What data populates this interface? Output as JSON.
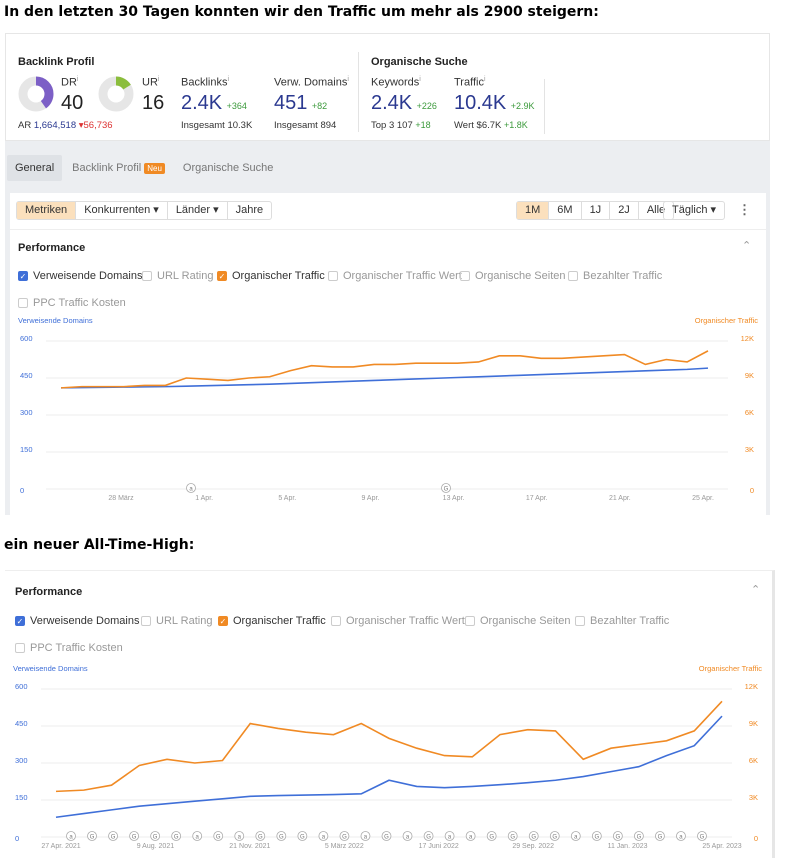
{
  "heading1": "In den letzten 30 Tagen konnten wir den Traffic um mehr als 2900 steigern:",
  "heading2": "ein neuer All-Time-High:",
  "colors": {
    "domains": "#3f6fd8",
    "traffic": "#f08a24",
    "dr": "#7c5fc6",
    "ur": "#8bbd3c"
  },
  "summary": {
    "backlink_title": "Backlink Profil",
    "organic_title": "Organische Suche",
    "dr": {
      "label": "DR",
      "value": "40",
      "percent": 40
    },
    "ur": {
      "label": "UR",
      "value": "16",
      "percent": 16
    },
    "ar_label": "AR",
    "ar_value": "1,664,518",
    "ar_change": "▾56,736",
    "backlinks": {
      "label": "Backlinks",
      "value": "2.4K",
      "change": "+364",
      "sub_label": "Insgesamt",
      "sub_value": "10.3K"
    },
    "domains": {
      "label": "Verw. Domains",
      "value": "451",
      "change": "+82",
      "sub_label": "Insgesamt",
      "sub_value": "894"
    },
    "keywords": {
      "label": "Keywords",
      "value": "2.4K",
      "change": "+226",
      "sub_label": "Top 3",
      "sub_value": "107",
      "sub_change": "+18"
    },
    "traffic": {
      "label": "Traffic",
      "value": "10.4K",
      "change": "+2.9K",
      "sub_label": "Wert",
      "sub_value": "$6.7K",
      "sub_change": "+1.8K"
    }
  },
  "tabs": [
    {
      "label": "General",
      "active": true
    },
    {
      "label": "Backlink Profil",
      "badge": "Neu"
    },
    {
      "label": "Organische Suche"
    }
  ],
  "toolbar": {
    "left": [
      "Metriken",
      "Konkurrenten ▾",
      "Länder ▾",
      "Jahre"
    ],
    "ranges": [
      "1M",
      "6M",
      "1J",
      "2J",
      "Alle"
    ],
    "active_range": "1M",
    "interval": "Täglich ▾"
  },
  "performance": {
    "title": "Performance",
    "checkboxes": [
      {
        "label": "Verweisende Domains",
        "checked": true,
        "color": "blue"
      },
      {
        "label": "URL Rating"
      },
      {
        "label": "Organischer Traffic",
        "checked": true,
        "color": "orange"
      },
      {
        "label": "Organischer Traffic Wert"
      },
      {
        "label": "Organische Seiten"
      },
      {
        "label": "Bezahlter Traffic"
      },
      {
        "label": "PPC Traffic Kosten"
      }
    ]
  },
  "chart_data": [
    {
      "type": "line",
      "left_axis_title": "Verweisende Domains",
      "right_axis_title": "Organischer Traffic",
      "y_left_ticks": [
        "0",
        "150",
        "300",
        "450",
        "600"
      ],
      "y_right_ticks": [
        "0",
        "3K",
        "6K",
        "9K",
        "12K"
      ],
      "ylim_left": [
        0,
        600
      ],
      "ylim_right": [
        0,
        12000
      ],
      "grid": true,
      "x_ticks": [
        "28 März",
        "1 Apr.",
        "5 Apr.",
        "9 Apr.",
        "13 Apr.",
        "17 Apr.",
        "21 Apr.",
        "25 Apr."
      ],
      "markers": [
        "a",
        "G"
      ],
      "series": [
        {
          "name": "Verweisende Domains",
          "axis": "left",
          "values": [
            410,
            411,
            412,
            413,
            414,
            415,
            417,
            419,
            421,
            423,
            425,
            428,
            431,
            434,
            437,
            440,
            443,
            446,
            449,
            452,
            455,
            458,
            461,
            464,
            467,
            470,
            473,
            476,
            479,
            482,
            485,
            490
          ]
        },
        {
          "name": "Organischer Traffic",
          "axis": "right",
          "values": [
            8200,
            8300,
            8300,
            8300,
            8400,
            8400,
            9000,
            8900,
            8800,
            9000,
            9100,
            9600,
            10000,
            9900,
            9900,
            10100,
            10100,
            10200,
            10200,
            10200,
            10300,
            10800,
            10800,
            10600,
            10600,
            10700,
            10800,
            10900,
            10100,
            10500,
            10300,
            11200
          ]
        }
      ]
    },
    {
      "type": "line",
      "left_axis_title": "Verweisende Domains",
      "right_axis_title": "Organischer Traffic",
      "y_left_ticks": [
        "0",
        "150",
        "300",
        "450",
        "600"
      ],
      "y_right_ticks": [
        "0",
        "3K",
        "6K",
        "9K",
        "12K"
      ],
      "ylim_left": [
        0,
        600
      ],
      "ylim_right": [
        0,
        12000
      ],
      "grid": true,
      "x_ticks": [
        "27 Apr. 2021",
        "9 Aug. 2021",
        "21 Nov. 2021",
        "5 März 2022",
        "17 Juni 2022",
        "29 Sep. 2022",
        "11 Jan. 2023",
        "25 Apr. 2023"
      ],
      "markers": [
        "a",
        "G",
        "G",
        "G",
        "G",
        "G",
        "a",
        "G",
        "a",
        "G",
        "G",
        "G",
        "a",
        "G",
        "a",
        "G",
        "a",
        "G",
        "a",
        "a",
        "G",
        "G",
        "G",
        "G",
        "a",
        "G",
        "G",
        "G",
        "G",
        "a",
        "G"
      ],
      "x": [
        "2021-04",
        "2021-05",
        "2021-06",
        "2021-07",
        "2021-08",
        "2021-09",
        "2021-10",
        "2021-11",
        "2021-12",
        "2022-01",
        "2022-02",
        "2022-03",
        "2022-04",
        "2022-05",
        "2022-06",
        "2022-07",
        "2022-08",
        "2022-09",
        "2022-10",
        "2022-11",
        "2022-12",
        "2023-01",
        "2023-02",
        "2023-03",
        "2023-04"
      ],
      "series": [
        {
          "name": "Verweisende Domains",
          "axis": "left",
          "values": [
            80,
            95,
            110,
            125,
            135,
            145,
            155,
            165,
            168,
            170,
            172,
            175,
            230,
            205,
            200,
            205,
            212,
            220,
            230,
            245,
            265,
            285,
            330,
            370,
            490
          ]
        },
        {
          "name": "Organischer Traffic",
          "axis": "right",
          "values": [
            3700,
            3800,
            4200,
            5800,
            6300,
            6000,
            6200,
            9200,
            8800,
            8500,
            8300,
            9200,
            8000,
            7200,
            6600,
            6500,
            8300,
            8700,
            8600,
            6300,
            7200,
            7500,
            7800,
            8600,
            11000
          ]
        }
      ]
    }
  ]
}
